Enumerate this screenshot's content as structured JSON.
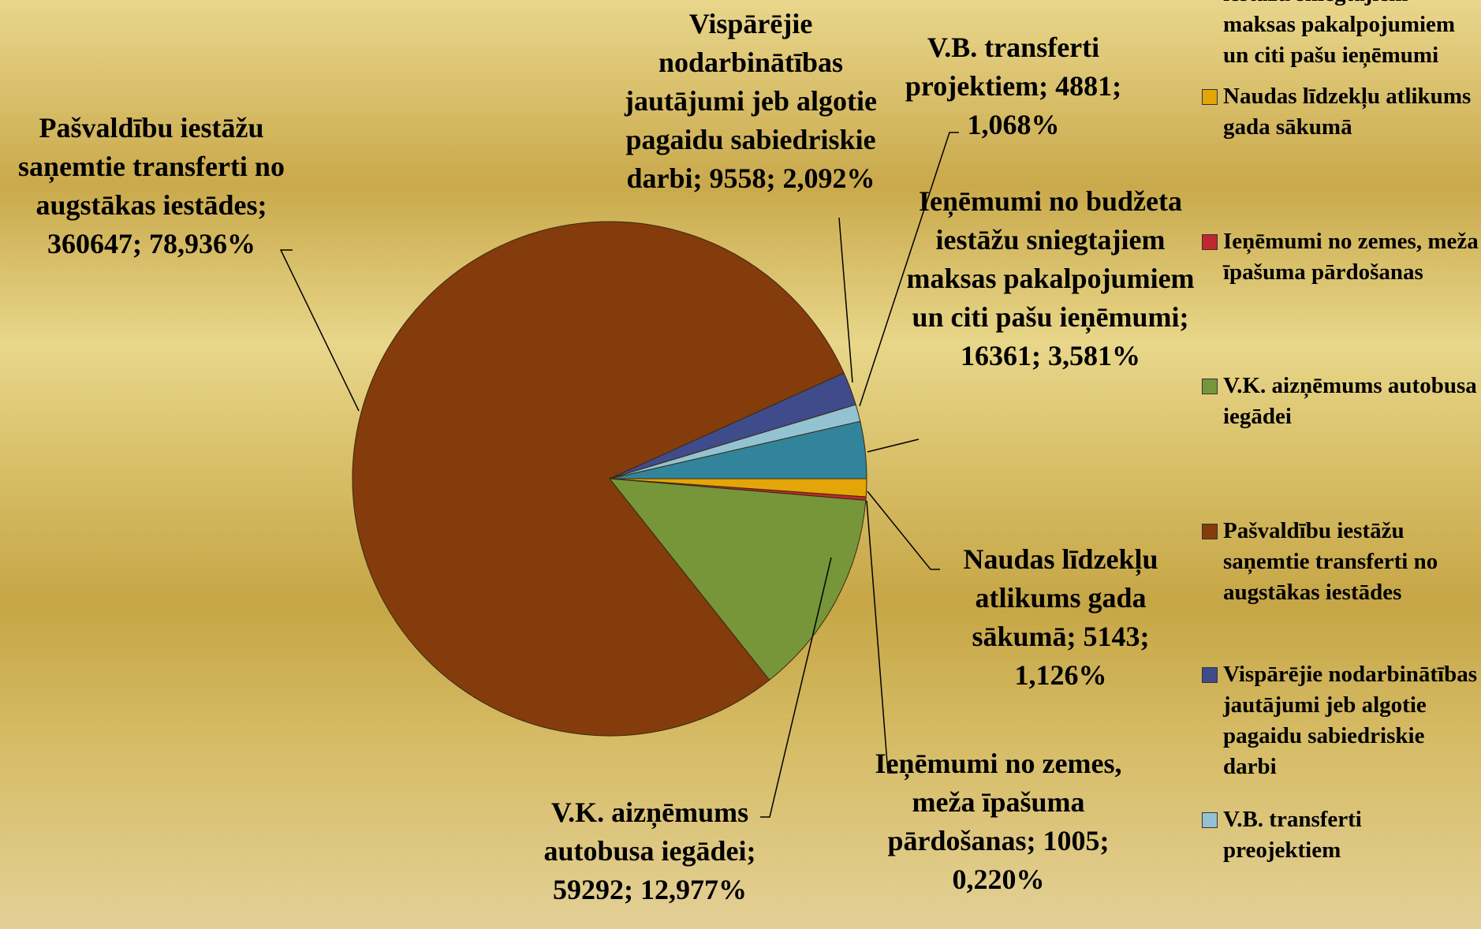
{
  "chart_data": {
    "type": "pie",
    "categories": [
      "Ieņēmumi no budžeta iestāžu sniegtajiem maksas pakalpojumiem un citi pašu ieņēmumi",
      "Naudas līdzekļu atlikums gada sākumā",
      "Ieņēmumi no zemes, meža īpašuma pārdošanas",
      "V.K. aizņēmums autobusa iegādei",
      "Pašvaldību iestāžu saņemtie transferti no augstākas iestādes",
      "Vispārējie nodarbinātības jautājumi jeb algotie pagaidu sabiedriskie darbi",
      "V.B. transferti preojektiem"
    ],
    "values": [
      16361,
      5143,
      1005,
      59292,
      360647,
      9558,
      4881
    ],
    "value_labels": [
      "Ieņēmumi no budžeta iestāžu sniegtajiem maksas pakalpojumiem un citi pašu ieņēmumi; 16361; 3,581%",
      "Naudas līdzekļu atlikums gada sākumā; 5143; 1,126%",
      "Ieņēmumi no zemes, meža īpašuma pārdošanas; 1005; 0,220%",
      "V.K. aizņēmums autobusa iegādei; 59292; 12,977%",
      "Pašvaldību iestāžu saņemtie transferti no augstākas iestādes; 360647; 78,936%",
      "Vispārējie nodarbinātības jautājumi jeb algotie pagaidu sabiedriskie darbi; 9558; 2,092%",
      "V.B. transferti projektiem; 4881; 1,068%"
    ],
    "colors": [
      "#31849b",
      "#e3a508",
      "#c0282d",
      "#77963a",
      "#843c0c",
      "#3f4b8a",
      "#93c3d3"
    ],
    "legend": "right"
  }
}
